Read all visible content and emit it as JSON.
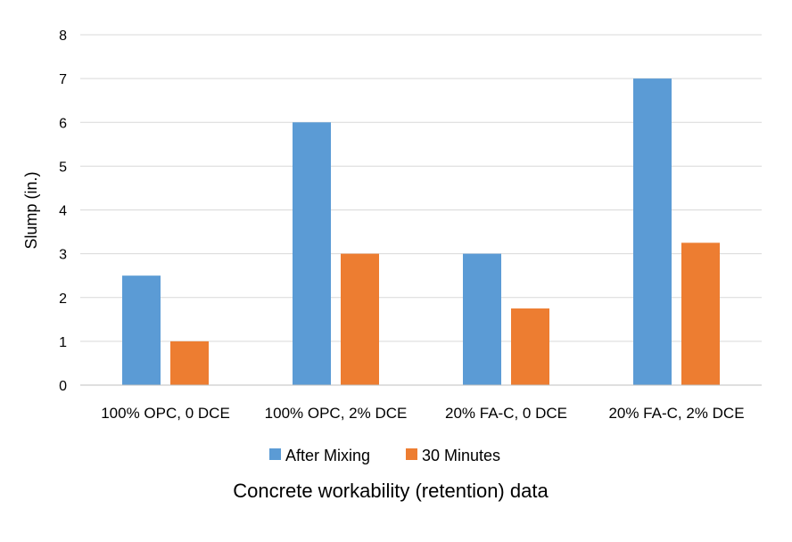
{
  "chart_data": {
    "type": "bar",
    "title": "Concrete workability (retention) data",
    "xlabel": "",
    "ylabel": "Slump (in.)",
    "ylim": [
      0,
      8
    ],
    "yticks": [
      0,
      1,
      2,
      3,
      4,
      5,
      6,
      7,
      8
    ],
    "grid": true,
    "legend": "bottom",
    "categories": [
      "100% OPC, 0 DCE",
      "100% OPC, 2% DCE",
      "20% FA-C, 0 DCE",
      "20% FA-C, 2% DCE"
    ],
    "series": [
      {
        "name": "After Mixing",
        "color": "#5B9BD5",
        "values": [
          2.5,
          6,
          3,
          7
        ]
      },
      {
        "name": "30 Minutes",
        "color": "#ED7D31",
        "values": [
          1,
          3,
          1.75,
          3.25
        ]
      }
    ]
  }
}
